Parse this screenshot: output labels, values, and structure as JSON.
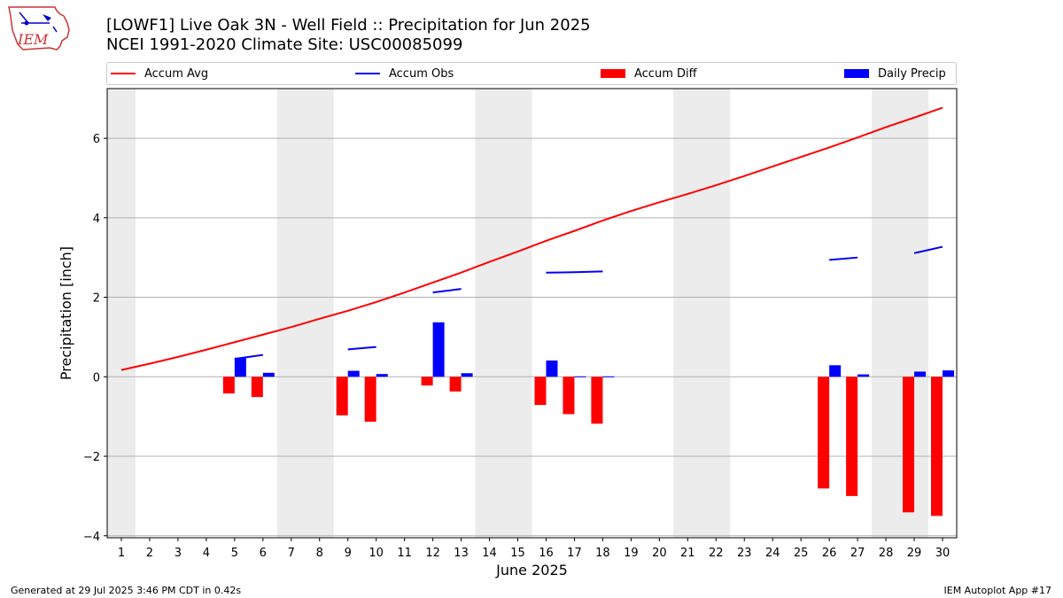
{
  "header": {
    "title_line1": "[LOWF1] Live Oak 3N - Well Field :: Precipitation for Jun 2025",
    "title_line2": "NCEI 1991-2020 Climate Site: USC00085099",
    "logo_text": "IEM"
  },
  "footer": {
    "generated": "Generated at 29 Jul 2025 3:46 PM CDT in 0.42s",
    "app": "IEM Autoplot App #17"
  },
  "chart_data": {
    "type": "bar",
    "title": "",
    "xlabel": "June 2025",
    "ylabel": "Precipitation [inch]",
    "xlim": [
      0.5,
      30.5
    ],
    "ylim": [
      -4.05,
      7.25
    ],
    "yticks": [
      -4,
      -2,
      0,
      2,
      4,
      6
    ],
    "ytick_labels": [
      "−4",
      "−2",
      "0",
      "2",
      "4",
      "6"
    ],
    "grid": "horizontal",
    "legend": {
      "placement": "top",
      "entries": [
        {
          "label": "Accum Avg",
          "kind": "line",
          "color": "#ff0000"
        },
        {
          "label": "Accum Obs",
          "kind": "line",
          "color": "#0000ff"
        },
        {
          "label": "Accum Diff",
          "kind": "bar",
          "color": "#ff0000"
        },
        {
          "label": "Daily Precip",
          "kind": "bar",
          "color": "#0000ff"
        }
      ]
    },
    "weekend_shading": [
      [
        0.5,
        1.5
      ],
      [
        6.5,
        8.5
      ],
      [
        13.5,
        15.5
      ],
      [
        20.5,
        22.5
      ],
      [
        27.5,
        29.5
      ]
    ],
    "days": [
      1,
      2,
      3,
      4,
      5,
      6,
      7,
      8,
      9,
      10,
      11,
      12,
      13,
      14,
      15,
      16,
      17,
      18,
      19,
      20,
      21,
      22,
      23,
      24,
      25,
      26,
      27,
      28,
      29,
      30
    ],
    "series": [
      {
        "name": "Accum Avg",
        "kind": "line",
        "color": "#ff0000",
        "values": [
          0.17,
          0.33,
          0.5,
          0.68,
          0.87,
          1.06,
          1.25,
          1.46,
          1.66,
          1.88,
          2.12,
          2.37,
          2.62,
          2.89,
          3.15,
          3.42,
          3.67,
          3.93,
          4.17,
          4.39,
          4.6,
          4.82,
          5.05,
          5.29,
          5.53,
          5.77,
          6.02,
          6.28,
          6.52,
          6.77
        ]
      },
      {
        "name": "Accum Obs",
        "kind": "line",
        "color": "#0000ff",
        "values": [
          null,
          null,
          null,
          null,
          0.45,
          0.55,
          null,
          null,
          0.69,
          0.75,
          null,
          2.12,
          2.21,
          null,
          null,
          2.62,
          2.63,
          2.65,
          null,
          null,
          null,
          null,
          null,
          null,
          null,
          2.94,
          3.0,
          null,
          3.11,
          3.27
        ]
      },
      {
        "name": "Accum Diff",
        "kind": "bar",
        "color": "#ff0000",
        "values": [
          null,
          null,
          null,
          null,
          -0.42,
          -0.51,
          null,
          null,
          -0.97,
          -1.13,
          null,
          -0.22,
          -0.37,
          null,
          null,
          -0.71,
          -0.94,
          -1.18,
          null,
          null,
          null,
          null,
          null,
          null,
          null,
          -2.81,
          -3.0,
          null,
          -3.41,
          -3.5
        ]
      },
      {
        "name": "Daily Precip",
        "kind": "bar",
        "color": "#0000ff",
        "values": [
          null,
          null,
          null,
          null,
          0.48,
          0.1,
          null,
          null,
          0.15,
          0.07,
          null,
          1.37,
          0.09,
          null,
          null,
          0.41,
          0.01,
          0.01,
          null,
          null,
          null,
          null,
          null,
          null,
          null,
          0.29,
          0.06,
          null,
          0.13,
          0.16
        ]
      }
    ]
  }
}
